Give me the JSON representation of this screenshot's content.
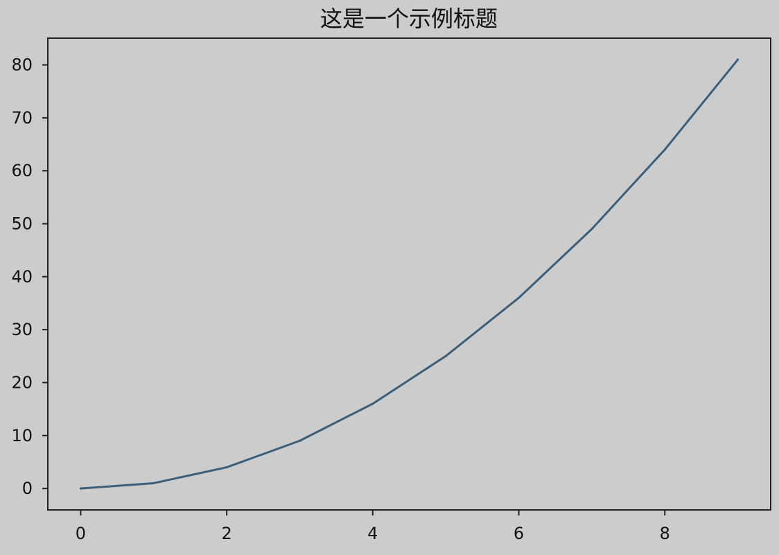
{
  "chart_data": {
    "type": "line",
    "title": "这是一个示例标题",
    "xlabel": "",
    "ylabel": "",
    "x": [
      0,
      1,
      2,
      3,
      4,
      5,
      6,
      7,
      8,
      9
    ],
    "series": [
      {
        "values": [
          0,
          1,
          4,
          9,
          16,
          25,
          36,
          49,
          64,
          81
        ],
        "color": "#3b5f7a"
      }
    ],
    "xlim": [
      -0.45,
      9.45
    ],
    "ylim": [
      -4.05,
      85.05
    ],
    "xticks": [
      0,
      2,
      4,
      6,
      8
    ],
    "yticks": [
      0,
      10,
      20,
      30,
      40,
      50,
      60,
      70,
      80
    ],
    "grid": false,
    "background_color": "#cccccc",
    "axes_color": "#222222"
  }
}
